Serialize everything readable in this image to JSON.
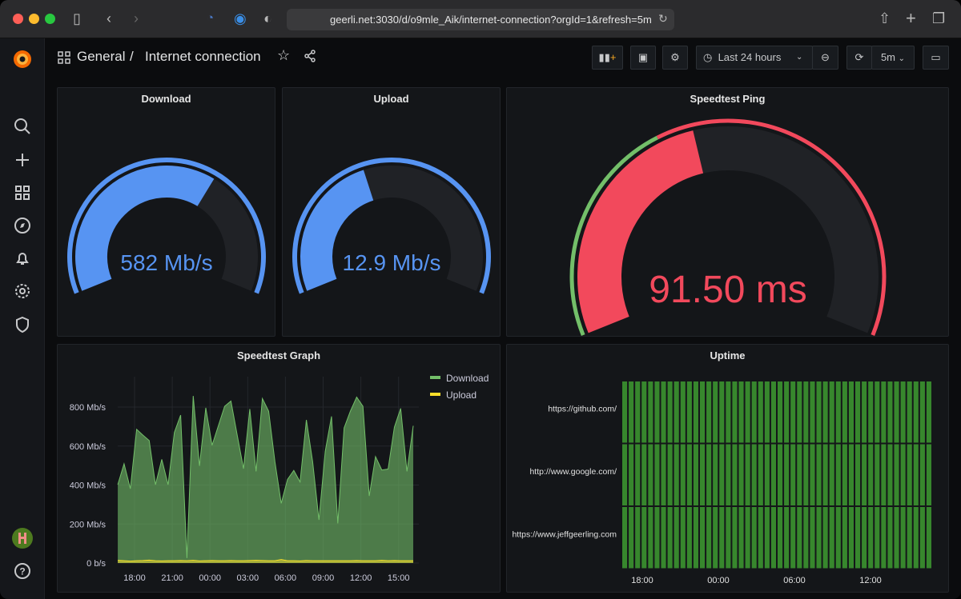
{
  "browser": {
    "url": "geerli.net:3030/d/o9mle_Aik/internet-connection?orgId=1&refresh=5m"
  },
  "header": {
    "folder": "General",
    "separator": "/",
    "title": "Internet connection",
    "time_range": "Last 24 hours",
    "refresh_interval": "5m"
  },
  "sidebar": {
    "items": [
      "search-icon",
      "plus-icon",
      "dashboards-icon",
      "explore-icon",
      "alerting-icon",
      "settings-icon",
      "shield-icon"
    ]
  },
  "colors": {
    "blue": "#5794f2",
    "red": "#f2495c",
    "green": "#73bf69",
    "upload": "#fade2a",
    "uptime": "#37872d",
    "track": "#202226"
  },
  "panels": {
    "download": {
      "title": "Download",
      "value": "582 Mb/s",
      "fill_fraction": 0.64,
      "color": "#5794f2"
    },
    "upload": {
      "title": "Upload",
      "value": "12.9 Mb/s",
      "fill_fraction": 0.42,
      "color": "#5794f2"
    },
    "ping": {
      "title": "Speedtest Ping",
      "value": "91.50 ms",
      "fill_fraction": 0.44,
      "threshold_green_fraction": 0.38,
      "color": "#f2495c"
    },
    "graph": {
      "title": "Speedtest Graph"
    },
    "uptime": {
      "title": "Uptime"
    }
  },
  "chart_data": [
    {
      "type": "area",
      "title": "Speedtest Graph",
      "y_ticks": [
        "0 b/s",
        "200 Mb/s",
        "400 Mb/s",
        "600 Mb/s",
        "800 Mb/s"
      ],
      "x_ticks": [
        "18:00",
        "21:00",
        "00:00",
        "03:00",
        "06:00",
        "09:00",
        "12:00",
        "15:00"
      ],
      "ylim": [
        0,
        900
      ],
      "grid": true,
      "legend_placement": "right",
      "x": [
        "16:40",
        "17:10",
        "17:40",
        "18:10",
        "18:40",
        "19:10",
        "19:40",
        "20:10",
        "20:40",
        "21:10",
        "21:40",
        "22:10",
        "22:40",
        "23:10",
        "23:40",
        "00:10",
        "00:40",
        "01:10",
        "01:40",
        "02:10",
        "02:40",
        "03:10",
        "03:40",
        "04:10",
        "04:40",
        "05:10",
        "05:40",
        "06:10",
        "06:40",
        "07:10",
        "07:40",
        "08:10",
        "08:40",
        "09:10",
        "09:40",
        "10:10",
        "10:40",
        "11:10",
        "11:40",
        "12:10",
        "12:40",
        "13:10",
        "13:40",
        "14:10",
        "14:40",
        "15:10",
        "15:40",
        "16:10"
      ],
      "series": [
        {
          "name": "Download",
          "unit": "Mb/s",
          "color": "#73bf69",
          "values": [
            402,
            509,
            381,
            686,
            656,
            628,
            402,
            532,
            402,
            670,
            759,
            25,
            857,
            498,
            796,
            604,
            704,
            804,
            831,
            656,
            484,
            790,
            470,
            844,
            779,
            519,
            306,
            429,
            475,
            416,
            734,
            519,
            221,
            573,
            752,
            203,
            693,
            779,
            851,
            804,
            344,
            546,
            477,
            482,
            697,
            793,
            470,
            704
          ]
        },
        {
          "name": "Upload",
          "unit": "Mb/s",
          "color": "#fade2a",
          "values": [
            14,
            12,
            10,
            12,
            13,
            15,
            12,
            11,
            12,
            12,
            13,
            12,
            14,
            11,
            12,
            13,
            12,
            12,
            13,
            12,
            12,
            13,
            14,
            13,
            12,
            12,
            18,
            12,
            12,
            11,
            13,
            12,
            12,
            12,
            12,
            12,
            12,
            12,
            13,
            12,
            12,
            12,
            14,
            12,
            13,
            12,
            12,
            12
          ]
        }
      ]
    },
    {
      "type": "status-history",
      "title": "Uptime",
      "rows": [
        "https://github.com/",
        "http://www.google.com/",
        "https://www.jeffgeerling.com"
      ],
      "x_ticks": [
        "18:00",
        "00:00",
        "06:00",
        "12:00"
      ],
      "bars_per_row": 48,
      "state": "up"
    }
  ]
}
